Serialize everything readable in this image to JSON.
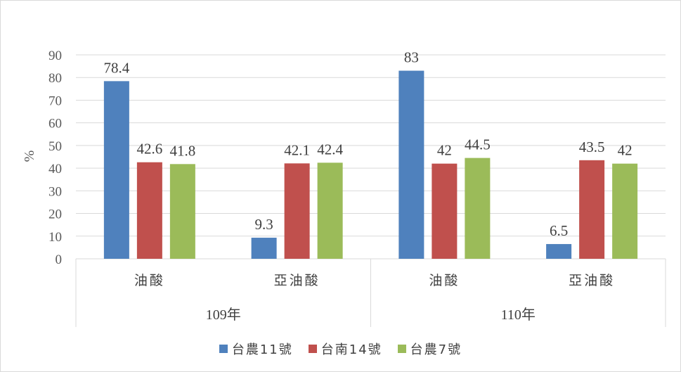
{
  "chart_data": {
    "type": "bar",
    "ylabel": "%",
    "ylim": [
      0,
      90
    ],
    "yticks": [
      0,
      10,
      20,
      30,
      40,
      50,
      60,
      70,
      80,
      90
    ],
    "grid": true,
    "legend_position": "bottom",
    "groups": [
      {
        "label": "109年",
        "categories": [
          "油酸",
          "亞油酸"
        ]
      },
      {
        "label": "110年",
        "categories": [
          "油酸",
          "亞油酸"
        ]
      }
    ],
    "series": [
      {
        "name": "台農11號",
        "color": "#4f81bd",
        "values": [
          78.4,
          9.3,
          83,
          6.5
        ]
      },
      {
        "name": "台南14號",
        "color": "#c0504d",
        "values": [
          42.6,
          42.1,
          42,
          43.5
        ]
      },
      {
        "name": "台農7號",
        "color": "#9bbb59",
        "values": [
          41.8,
          42.4,
          44.5,
          42
        ]
      }
    ]
  }
}
